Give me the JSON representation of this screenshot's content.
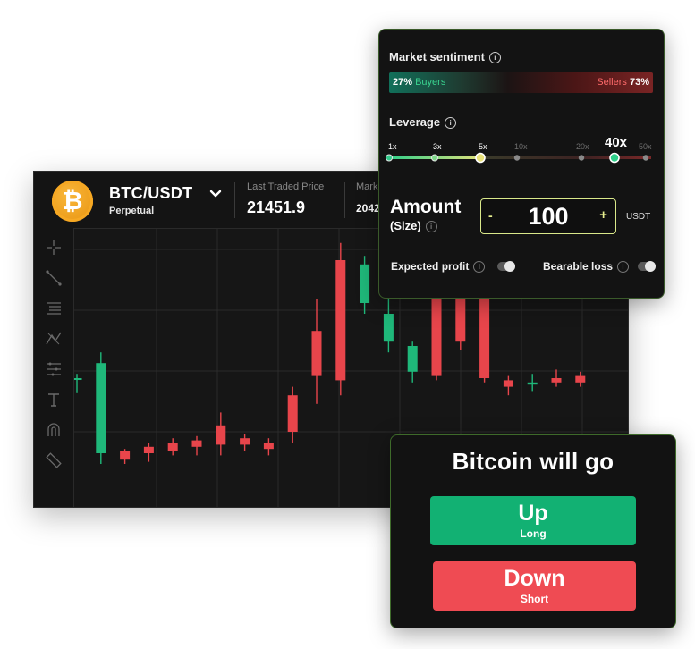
{
  "header": {
    "pair": "BTC/USDT",
    "contract_type": "Perpetual",
    "coin_symbol": "₿",
    "last_traded_label": "Last Traded Price",
    "last_traded_value": "21451.9",
    "mark_label": "Mark",
    "mark_value": "2042"
  },
  "sentiment": {
    "title": "Market sentiment",
    "buyers_pct": "27%",
    "buyers_label": "Buyers",
    "sellers_label": "Sellers",
    "sellers_pct": "73%",
    "buyers_color": "#3ad38f",
    "sellers_color": "#ff6b6b"
  },
  "leverage": {
    "title": "Leverage",
    "options": [
      "1x",
      "3x",
      "5x",
      "10x",
      "20x",
      "50x"
    ],
    "selected_value": "5x",
    "current_label": "40x"
  },
  "amount": {
    "title": "Amount",
    "subtitle": "(Size)",
    "minus": "-",
    "plus": "+",
    "value": "100",
    "unit": "USDT"
  },
  "toggles": {
    "expected_profit": "Expected profit",
    "bearable_loss": "Bearable loss"
  },
  "prediction": {
    "title": "Bitcoin will go",
    "up_label": "Up",
    "up_sub": "Long",
    "down_label": "Down",
    "down_sub": "Short",
    "up_color": "#12b173",
    "down_color": "#ef4b53"
  },
  "chart_data": {
    "type": "candlestick",
    "title": "",
    "up_color": "#1fb87a",
    "down_color": "#e8454b",
    "candles": [
      {
        "o": 100,
        "h": 102,
        "l": 93,
        "c": 100
      },
      {
        "o": 65,
        "h": 112,
        "l": 60,
        "c": 107
      },
      {
        "o": 66,
        "h": 67,
        "l": 60,
        "c": 62
      },
      {
        "o": 68,
        "h": 70,
        "l": 61,
        "c": 65
      },
      {
        "o": 70,
        "h": 72,
        "l": 64,
        "c": 66
      },
      {
        "o": 71,
        "h": 73,
        "l": 64,
        "c": 68
      },
      {
        "o": 78,
        "h": 84,
        "l": 64,
        "c": 69
      },
      {
        "o": 72,
        "h": 74,
        "l": 66,
        "c": 69
      },
      {
        "o": 70,
        "h": 72,
        "l": 64,
        "c": 67
      },
      {
        "o": 92,
        "h": 96,
        "l": 70,
        "c": 75
      },
      {
        "o": 122,
        "h": 137,
        "l": 88,
        "c": 101
      },
      {
        "o": 155,
        "h": 163,
        "l": 92,
        "c": 99
      },
      {
        "o": 135,
        "h": 157,
        "l": 130,
        "c": 153
      },
      {
        "o": 117,
        "h": 145,
        "l": 112,
        "c": 130
      },
      {
        "o": 103,
        "h": 117,
        "l": 98,
        "c": 115
      },
      {
        "o": 140,
        "h": 156,
        "l": 99,
        "c": 101
      },
      {
        "o": 151,
        "h": 158,
        "l": 113,
        "c": 117
      },
      {
        "o": 151,
        "h": 153,
        "l": 98,
        "c": 100
      },
      {
        "o": 99,
        "h": 101,
        "l": 92,
        "c": 96
      },
      {
        "o": 97,
        "h": 102,
        "l": 94,
        "c": 98
      },
      {
        "o": 100,
        "h": 104,
        "l": 96,
        "c": 98
      },
      {
        "o": 101,
        "h": 103,
        "l": 96,
        "c": 98
      }
    ],
    "ylim": [
      40,
      170
    ]
  }
}
